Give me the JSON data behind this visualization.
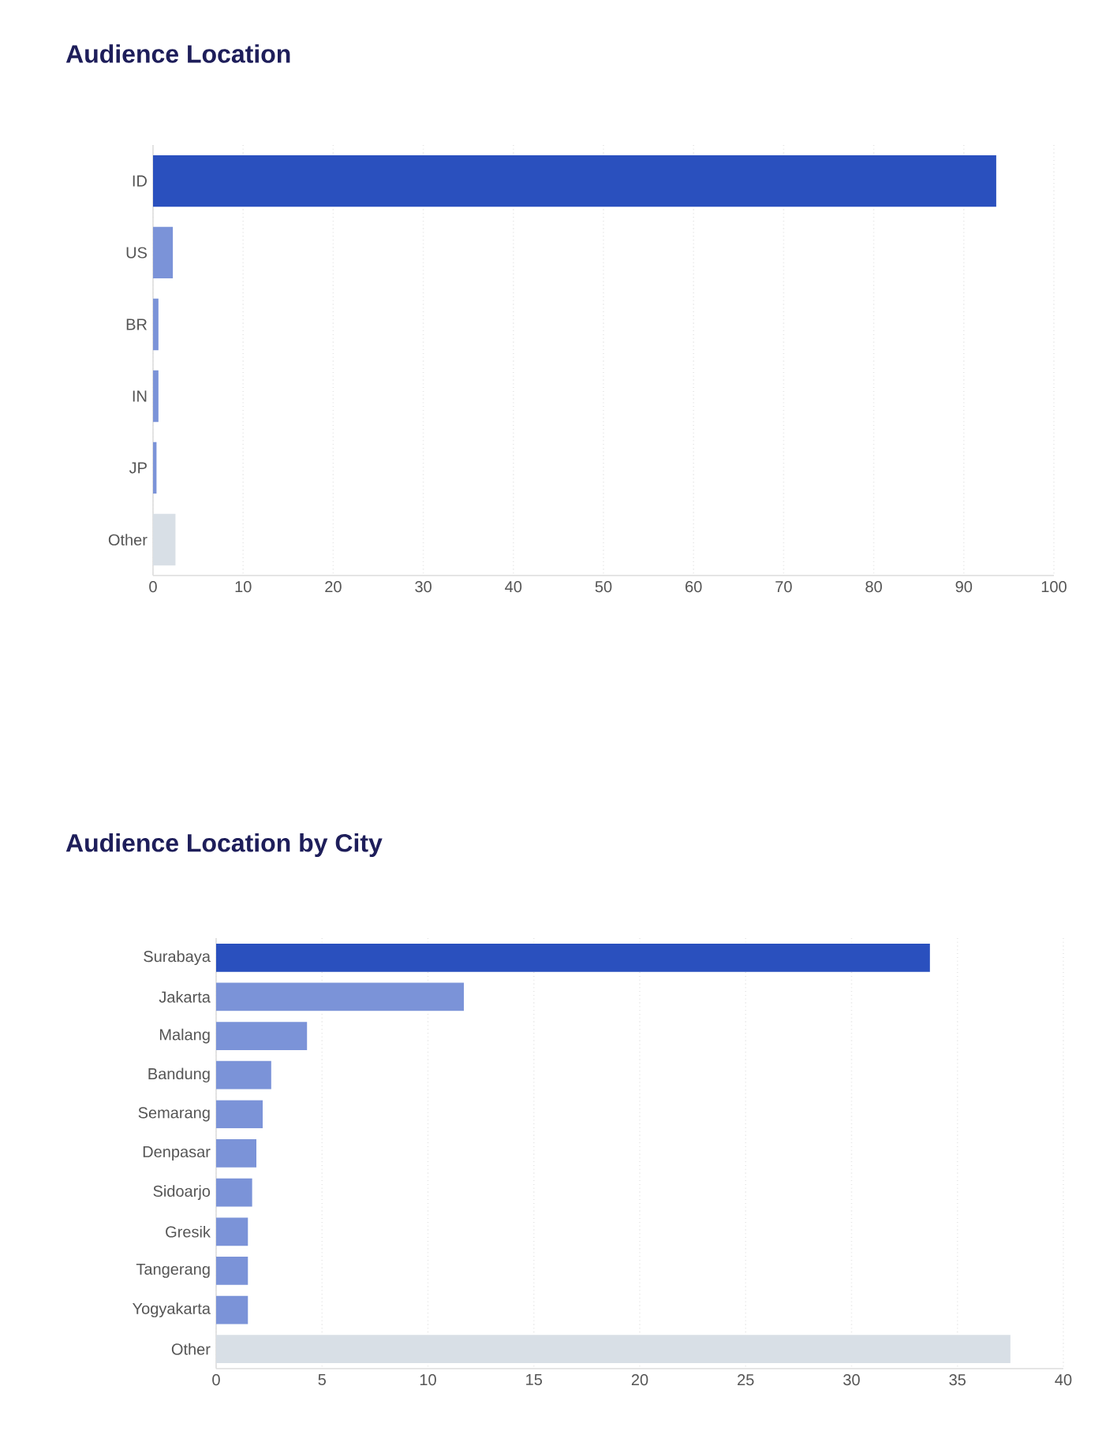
{
  "chart_data": [
    {
      "type": "bar",
      "orientation": "horizontal",
      "title": "Audience Location",
      "categories": [
        "ID",
        "US",
        "BR",
        "IN",
        "JP",
        "Other"
      ],
      "values": [
        93.6,
        2.2,
        0.6,
        0.6,
        0.4,
        2.5
      ],
      "colors": [
        "#2a50be",
        "#7b93d8",
        "#7b93d8",
        "#7b93d8",
        "#7b93d8",
        "#d8dfe6"
      ],
      "xlim": [
        0,
        100
      ],
      "xticks": [
        0,
        10,
        20,
        30,
        40,
        50,
        60,
        70,
        80,
        90,
        100
      ],
      "grid": "x"
    },
    {
      "type": "bar",
      "orientation": "horizontal",
      "title": "Audience Location by City",
      "categories": [
        "Surabaya",
        "Jakarta",
        "Malang",
        "Bandung",
        "Semarang",
        "Denpasar",
        "Sidoarjo",
        "Gresik",
        "Tangerang",
        "Yogyakarta",
        "Other"
      ],
      "values": [
        33.7,
        11.7,
        4.3,
        2.6,
        2.2,
        1.9,
        1.7,
        1.5,
        1.5,
        1.5,
        37.5
      ],
      "colors": [
        "#2a50be",
        "#7b93d8",
        "#7b93d8",
        "#7b93d8",
        "#7b93d8",
        "#7b93d8",
        "#7b93d8",
        "#7b93d8",
        "#7b93d8",
        "#7b93d8",
        "#d8dfe6"
      ],
      "xlim": [
        0,
        40
      ],
      "xticks": [
        0,
        5,
        10,
        15,
        20,
        25,
        30,
        35,
        40
      ],
      "grid": "x"
    }
  ]
}
